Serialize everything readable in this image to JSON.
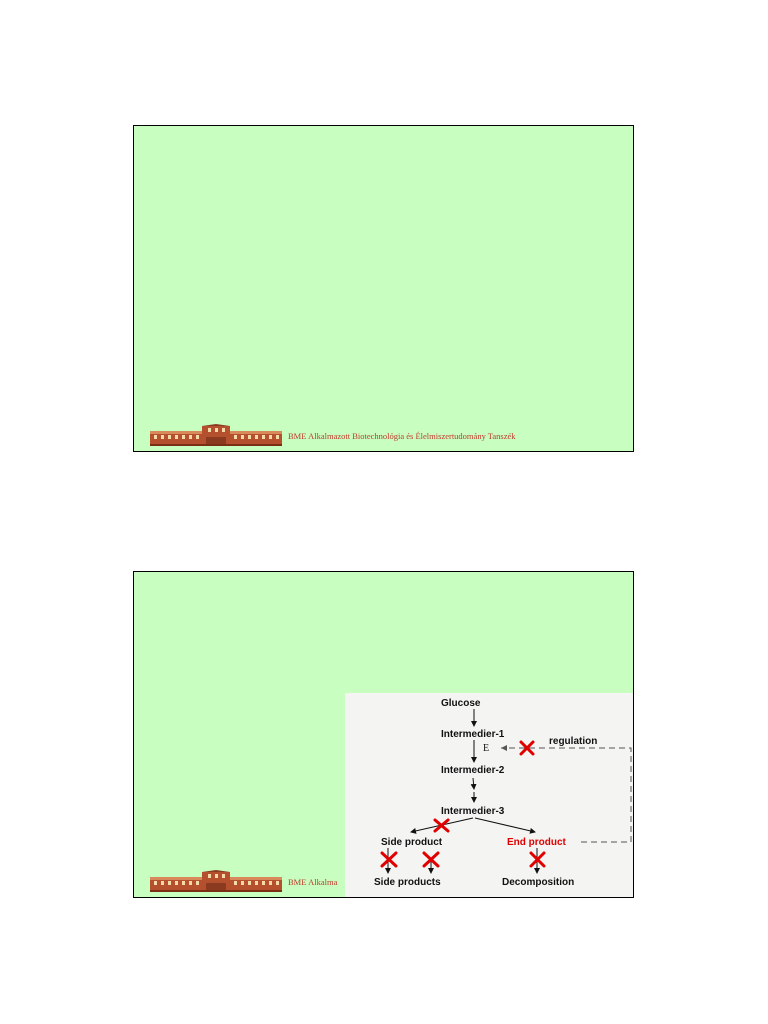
{
  "footer": {
    "text": "BME Alkalmazott Biotechnológia és Élelmiszertudomány Tanszék",
    "text_truncated": "BME Alkalma"
  },
  "diagram": {
    "glucose": "Glucose",
    "intermedier1": "Intermedier-1",
    "enzyme": "E",
    "regulation": "regulation",
    "intermedier2": "Intermedier-2",
    "intermedier3": "Intermedier-3",
    "side_product": "Side product",
    "end_product": "End product",
    "side_products": "Side products",
    "decomposition": "Decomposition",
    "colors": {
      "block_mark": "#e00000",
      "end_product": "#e00000"
    }
  }
}
